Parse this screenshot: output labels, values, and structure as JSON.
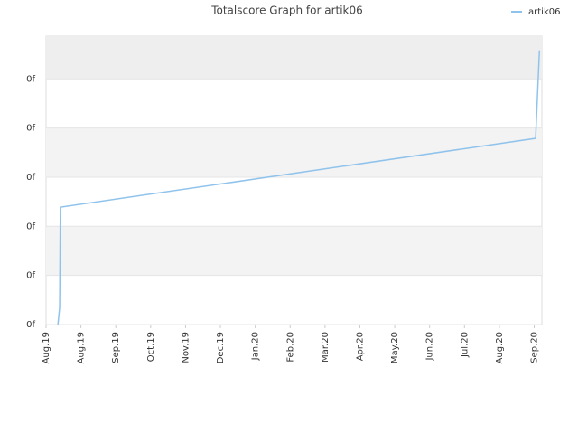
{
  "chart_data": {
    "type": "line",
    "title": "Totalscore Graph for artik06",
    "xlim": [
      0,
      14.22
    ],
    "xticks": [
      {
        "value": 0,
        "label": "Aug.19"
      },
      {
        "value": 1,
        "label": "Aug.19"
      },
      {
        "value": 2,
        "label": "Sep.19"
      },
      {
        "value": 3,
        "label": "Oct.19"
      },
      {
        "value": 4,
        "label": "Nov.19"
      },
      {
        "value": 5,
        "label": "Dec.19"
      },
      {
        "value": 6,
        "label": "Jan.20"
      },
      {
        "value": 7,
        "label": "Feb.20"
      },
      {
        "value": 8,
        "label": "Mar.20"
      },
      {
        "value": 9,
        "label": "Apr.20"
      },
      {
        "value": 10,
        "label": "May.20"
      },
      {
        "value": 11,
        "label": "Jun.20"
      },
      {
        "value": 12,
        "label": "Jul.20"
      },
      {
        "value": 13,
        "label": "Aug.20"
      },
      {
        "value": 14,
        "label": "Sep.20"
      }
    ],
    "ylim": [
      0,
      5.87
    ],
    "yticks": [
      {
        "value": 0,
        "label": "0f"
      },
      {
        "value": 1,
        "label": "0f"
      },
      {
        "value": 2,
        "label": "0f"
      },
      {
        "value": 3,
        "label": "0f"
      },
      {
        "value": 4,
        "label": "0f"
      },
      {
        "value": 5,
        "label": "0f"
      }
    ],
    "grid": true,
    "legend": "top-right",
    "series": [
      {
        "name": "artik06",
        "color": "#90c3ec",
        "x": [
          0.34,
          0.39,
          0.41,
          14.04,
          14.15
        ],
        "values": [
          0,
          0.35,
          2.39,
          3.79,
          5.58
        ]
      }
    ]
  }
}
